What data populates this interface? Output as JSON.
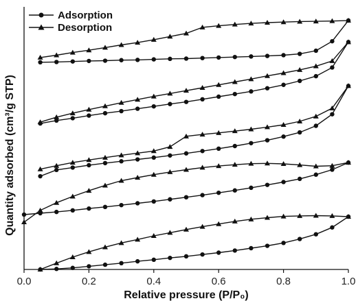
{
  "chart_data": {
    "type": "line",
    "title": "",
    "xlabel": "Relative pressure (P/P₀)",
    "ylabel": "Quantity adsorbed (cm³/g STP)",
    "xlim": [
      0.0,
      1.0
    ],
    "xticks": [
      "0.0",
      "0.2",
      "0.4",
      "0.6",
      "0.8",
      "1.0"
    ],
    "ylim": [
      0,
      100
    ],
    "y_ticks_shown": false,
    "grid": false,
    "legend_position": "top-left",
    "legend": [
      {
        "name": "Adsorption",
        "marker": "circle"
      },
      {
        "name": "Desorption",
        "marker": "triangle"
      }
    ],
    "colors": {
      "line": "#111111",
      "marker": "#111111"
    },
    "curves": [
      {
        "adsorption": {
          "x": [
            0.05,
            0.1,
            0.15,
            0.2,
            0.25,
            0.3,
            0.35,
            0.4,
            0.45,
            0.5,
            0.55,
            0.6,
            0.65,
            0.7,
            0.75,
            0.8,
            0.85,
            0.9,
            0.95,
            1.0
          ],
          "y": [
            0,
            0.2,
            0.6,
            1.2,
            1.8,
            2.4,
            3.1,
            3.7,
            4.4,
            5.0,
            5.7,
            6.4,
            7.2,
            8.1,
            9.0,
            10.1,
            11.6,
            13.4,
            16.0,
            20.1
          ]
        },
        "desorption": {
          "x": [
            0.05,
            0.1,
            0.15,
            0.2,
            0.25,
            0.3,
            0.35,
            0.4,
            0.45,
            0.5,
            0.55,
            0.6,
            0.65,
            0.7,
            0.75,
            0.8,
            0.85,
            0.9,
            0.95,
            1.0
          ],
          "y": [
            0,
            2.4,
            4.7,
            6.7,
            8.5,
            10.1,
            11.4,
            12.8,
            14.0,
            15.2,
            16.3,
            17.3,
            18.3,
            19.1,
            19.7,
            20.2,
            20.4,
            20.5,
            20.4,
            20.1
          ]
        }
      },
      {
        "adsorption": {
          "x": [
            0.0,
            0.05,
            0.1,
            0.15,
            0.2,
            0.25,
            0.3,
            0.35,
            0.4,
            0.45,
            0.5,
            0.55,
            0.6,
            0.65,
            0.7,
            0.75,
            0.8,
            0.85,
            0.9,
            0.95,
            1.0
          ],
          "y": [
            20.9,
            21.4,
            21.9,
            22.5,
            23.2,
            23.8,
            24.5,
            25.2,
            25.9,
            26.7,
            27.5,
            28.3,
            29.2,
            30.1,
            31.1,
            32.2,
            33.3,
            34.5,
            36.1,
            38.0,
            40.7
          ]
        },
        "desorption": {
          "x": [
            0.0,
            0.05,
            0.1,
            0.15,
            0.2,
            0.25,
            0.3,
            0.35,
            0.4,
            0.45,
            0.5,
            0.55,
            0.6,
            0.65,
            0.7,
            0.75,
            0.8,
            0.85,
            0.9,
            0.95,
            1.0
          ],
          "y": [
            18.0,
            22.5,
            25.4,
            27.8,
            30.0,
            32.0,
            33.8,
            35.0,
            36.1,
            37.1,
            38.0,
            38.8,
            39.4,
            39.9,
            40.3,
            40.4,
            40.2,
            39.8,
            39.3,
            39.5,
            40.7
          ]
        }
      },
      {
        "adsorption": {
          "x": [
            0.05,
            0.1,
            0.15,
            0.2,
            0.25,
            0.3,
            0.35,
            0.4,
            0.45,
            0.5,
            0.55,
            0.6,
            0.65,
            0.7,
            0.75,
            0.8,
            0.85,
            0.9,
            0.95,
            1.0
          ],
          "y": [
            35.5,
            37.9,
            38.8,
            39.7,
            40.5,
            41.2,
            41.9,
            42.6,
            43.4,
            44.2,
            45.1,
            46.0,
            47.0,
            48.1,
            49.2,
            50.6,
            52.2,
            54.7,
            59.1,
            69.9
          ]
        },
        "desorption": {
          "x": [
            0.05,
            0.1,
            0.15,
            0.2,
            0.25,
            0.3,
            0.35,
            0.4,
            0.45,
            0.5,
            0.55,
            0.6,
            0.65,
            0.7,
            0.75,
            0.8,
            0.85,
            0.9,
            0.95,
            1.0
          ],
          "y": [
            38.2,
            39.5,
            40.7,
            41.7,
            42.6,
            43.5,
            44.3,
            45.1,
            46.7,
            50.7,
            51.4,
            52.0,
            52.7,
            53.4,
            54.2,
            55.1,
            56.4,
            58.3,
            61.4,
            69.9
          ]
        }
      },
      {
        "adsorption": {
          "x": [
            0.05,
            0.1,
            0.15,
            0.2,
            0.25,
            0.3,
            0.35,
            0.4,
            0.45,
            0.5,
            0.55,
            0.6,
            0.65,
            0.7,
            0.75,
            0.8,
            0.85,
            0.9,
            0.95,
            1.0
          ],
          "y": [
            55.6,
            56.7,
            57.6,
            58.6,
            59.5,
            60.3,
            61.2,
            62.1,
            63.0,
            63.8,
            64.8,
            65.8,
            66.8,
            67.8,
            69.0,
            70.3,
            71.8,
            73.6,
            76.9,
            86.6
          ]
        },
        "desorption": {
          "x": [
            0.05,
            0.1,
            0.15,
            0.2,
            0.25,
            0.3,
            0.35,
            0.4,
            0.45,
            0.5,
            0.55,
            0.6,
            0.65,
            0.7,
            0.75,
            0.8,
            0.85,
            0.9,
            0.95,
            1.0
          ],
          "y": [
            56.1,
            58.0,
            59.5,
            60.9,
            62.2,
            63.5,
            64.7,
            65.9,
            67.0,
            68.1,
            69.2,
            70.3,
            71.4,
            72.5,
            73.7,
            74.8,
            76.0,
            77.4,
            79.4,
            86.6
          ]
        }
      },
      {
        "adsorption": {
          "x": [
            0.05,
            0.1,
            0.15,
            0.2,
            0.25,
            0.3,
            0.35,
            0.4,
            0.45,
            0.5,
            0.55,
            0.6,
            0.65,
            0.7,
            0.75,
            0.8,
            0.85,
            0.9,
            0.95,
            1.0
          ],
          "y": [
            78.9,
            79.0,
            79.2,
            79.4,
            79.5,
            79.7,
            79.8,
            80.0,
            80.2,
            80.3,
            80.5,
            80.7,
            80.9,
            81.1,
            81.3,
            81.6,
            82.1,
            83.3,
            86.9,
            94.8
          ]
        },
        "desorption": {
          "x": [
            0.05,
            0.1,
            0.15,
            0.2,
            0.25,
            0.3,
            0.35,
            0.4,
            0.45,
            0.5,
            0.55,
            0.6,
            0.65,
            0.7,
            0.75,
            0.8,
            0.85,
            0.9,
            0.95,
            1.0
          ],
          "y": [
            80.7,
            81.6,
            82.6,
            83.5,
            84.5,
            85.5,
            86.4,
            87.5,
            88.7,
            89.9,
            92.2,
            92.8,
            93.3,
            93.7,
            94.0,
            94.2,
            94.4,
            94.5,
            94.6,
            94.8
          ]
        }
      }
    ]
  }
}
